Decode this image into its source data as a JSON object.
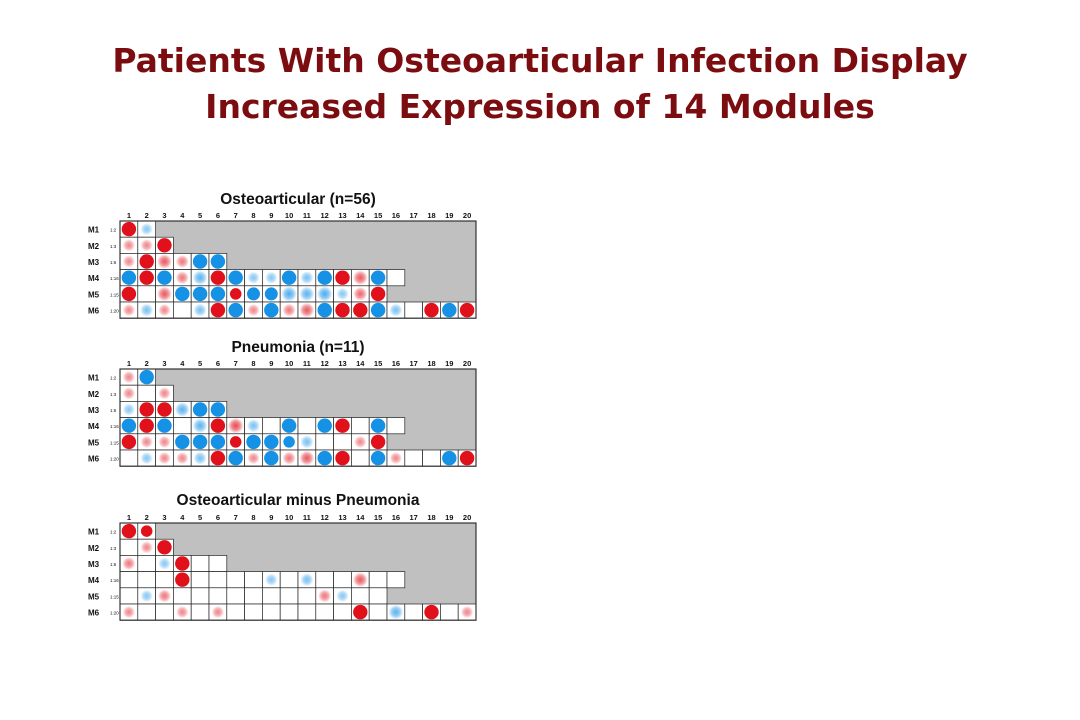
{
  "slide": {
    "title_line1": "Patients With Osteoarticular Infection Display",
    "title_line2": "Increased Expression of 14 Modules"
  },
  "colors": {
    "title": "#7b0d10",
    "up": "#e0111b",
    "down": "#1592e6",
    "inactive_fill": "#c0c0c0",
    "grid": "#222222"
  },
  "chart_data": [
    {
      "type": "heatmap",
      "title": "Osteoarticular (n=56)",
      "columns": [
        "1",
        "2",
        "3",
        "4",
        "5",
        "6",
        "7",
        "8",
        "9",
        "10",
        "11",
        "12",
        "13",
        "14",
        "15",
        "16",
        "17",
        "18",
        "19",
        "20"
      ],
      "rows": [
        {
          "label": "M1",
          "range": "1:2",
          "length": 2,
          "values": [
            1,
            -0.3
          ]
        },
        {
          "label": "M2",
          "range": "1:3",
          "length": 3,
          "values": [
            0.3,
            0.3,
            1
          ]
        },
        {
          "label": "M3",
          "range": "1:6",
          "length": 6,
          "values": [
            0.3,
            1,
            0.6,
            0.4,
            -1,
            -1
          ]
        },
        {
          "label": "M4",
          "range": "1:16",
          "length": 16,
          "values": [
            -1,
            1,
            -1,
            0.4,
            -0.6,
            1,
            -1,
            -0.3,
            -0.3,
            -1,
            -0.4,
            -1,
            1,
            0.6,
            -1,
            0
          ]
        },
        {
          "label": "M5",
          "range": "1:15",
          "length": 15,
          "values": [
            1,
            0,
            0.6,
            -1,
            -1,
            -1,
            0.8,
            -0.9,
            -0.9,
            -0.7,
            -0.6,
            -0.7,
            -0.3,
            0.5,
            1
          ]
        },
        {
          "label": "M6",
          "range": "1:20",
          "length": 20,
          "values": [
            0.3,
            -0.4,
            0.3,
            0,
            -0.4,
            1,
            -1,
            0.3,
            -1,
            0.4,
            0.6,
            -1,
            1,
            1,
            -1,
            -0.4,
            0,
            1,
            -1,
            1
          ]
        }
      ]
    },
    {
      "type": "heatmap",
      "title": "Pneumonia (n=11)",
      "columns": [
        "1",
        "2",
        "3",
        "4",
        "5",
        "6",
        "7",
        "8",
        "9",
        "10",
        "11",
        "12",
        "13",
        "14",
        "15",
        "16",
        "17",
        "18",
        "19",
        "20"
      ],
      "rows": [
        {
          "label": "M1",
          "range": "1:2",
          "length": 2,
          "values": [
            0.3,
            -1
          ]
        },
        {
          "label": "M2",
          "range": "1:3",
          "length": 3,
          "values": [
            0.3,
            0,
            0.3
          ]
        },
        {
          "label": "M3",
          "range": "1:6",
          "length": 6,
          "values": [
            -0.3,
            1,
            1,
            -0.6,
            -1,
            -1
          ]
        },
        {
          "label": "M4",
          "range": "1:16",
          "length": 16,
          "values": [
            -1,
            1,
            -1,
            0,
            -0.6,
            1,
            0.7,
            -0.4,
            0,
            -1,
            0,
            -1,
            1,
            0,
            -1,
            0
          ]
        },
        {
          "label": "M5",
          "range": "1:15",
          "length": 15,
          "values": [
            1,
            0.3,
            0.3,
            -1,
            -1,
            -1,
            0.8,
            -1,
            -1,
            -0.8,
            -0.4,
            0,
            0,
            0.3,
            1
          ]
        },
        {
          "label": "M6",
          "range": "1:20",
          "length": 20,
          "values": [
            0,
            -0.3,
            0.3,
            0.3,
            -0.4,
            1,
            -1,
            0.3,
            -1,
            0.4,
            0.6,
            -1,
            1,
            0,
            -1,
            0.3,
            0,
            0,
            -1,
            1
          ]
        }
      ]
    },
    {
      "type": "heatmap",
      "title": "Osteoarticular minus Pneumonia",
      "columns": [
        "1",
        "2",
        "3",
        "4",
        "5",
        "6",
        "7",
        "8",
        "9",
        "10",
        "11",
        "12",
        "13",
        "14",
        "15",
        "16",
        "17",
        "18",
        "19",
        "20"
      ],
      "rows": [
        {
          "label": "M1",
          "range": "1:2",
          "length": 2,
          "values": [
            1,
            0.8
          ]
        },
        {
          "label": "M2",
          "range": "1:3",
          "length": 3,
          "values": [
            0,
            0.3,
            1
          ]
        },
        {
          "label": "M3",
          "range": "1:6",
          "length": 6,
          "values": [
            0.4,
            0,
            -0.3,
            1,
            0,
            0
          ]
        },
        {
          "label": "M4",
          "range": "1:16",
          "length": 16,
          "values": [
            0,
            0,
            0,
            1,
            0,
            0,
            0,
            0,
            -0.3,
            0,
            -0.4,
            0,
            0,
            0.6,
            0,
            0
          ]
        },
        {
          "label": "M5",
          "range": "1:15",
          "length": 15,
          "values": [
            0,
            -0.3,
            0.4,
            0,
            0,
            0,
            0,
            0,
            0,
            0,
            0,
            0.4,
            -0.3,
            0,
            0
          ]
        },
        {
          "label": "M6",
          "range": "1:20",
          "length": 20,
          "values": [
            0.3,
            0,
            0,
            0.3,
            0,
            0.3,
            0,
            0,
            0,
            0,
            0,
            0,
            0,
            1,
            0,
            -0.6,
            0,
            1,
            0,
            0.3
          ]
        }
      ]
    }
  ]
}
